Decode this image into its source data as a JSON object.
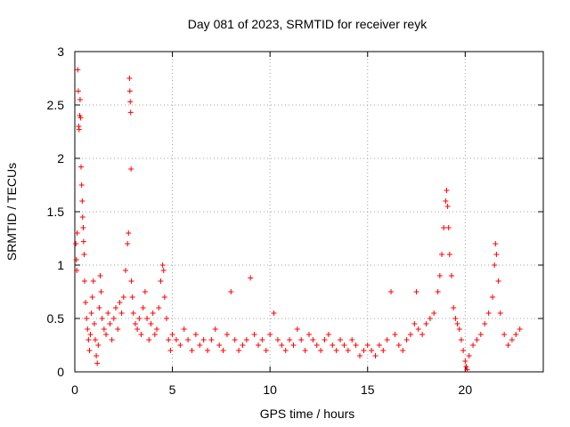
{
  "chart_data": {
    "type": "scatter",
    "title": "Day 081 of 2023, SRMTID for receiver reyk",
    "xlabel": "GPS time / hours",
    "ylabel": "SRMTID / TECUs",
    "xlim": [
      0,
      24
    ],
    "ylim": [
      0,
      3
    ],
    "grid": true,
    "marker": "+",
    "color": "#ff0000",
    "xticks": [
      0,
      5,
      10,
      15,
      20
    ],
    "yticks": [
      0,
      0.5,
      1,
      1.5,
      2,
      2.5,
      3
    ],
    "xtick_labels": [
      "0",
      "5",
      "10",
      "15",
      "20"
    ],
    "ytick_labels": [
      "0",
      "0.5",
      "1",
      "1.5",
      "2",
      "2.5",
      "3"
    ],
    "series": [
      {
        "name": "SRMTID",
        "points": [
          [
            0.05,
            1.2
          ],
          [
            0.08,
            1.05
          ],
          [
            0.1,
            0.95
          ],
          [
            0.12,
            1.3
          ],
          [
            0.15,
            2.83
          ],
          [
            0.18,
            2.63
          ],
          [
            0.2,
            2.3
          ],
          [
            0.22,
            2.27
          ],
          [
            0.25,
            2.4
          ],
          [
            0.27,
            2.55
          ],
          [
            0.3,
            2.38
          ],
          [
            0.32,
            1.92
          ],
          [
            0.35,
            1.75
          ],
          [
            0.38,
            1.6
          ],
          [
            0.4,
            1.45
          ],
          [
            0.43,
            1.35
          ],
          [
            0.45,
            1.22
          ],
          [
            0.48,
            1.1
          ],
          [
            0.5,
            0.85
          ],
          [
            0.55,
            0.65
          ],
          [
            0.6,
            0.5
          ],
          [
            0.65,
            0.4
          ],
          [
            0.7,
            0.3
          ],
          [
            0.75,
            0.2
          ],
          [
            0.8,
            0.35
          ],
          [
            0.85,
            0.55
          ],
          [
            0.9,
            0.7
          ],
          [
            0.95,
            0.85
          ],
          [
            1.0,
            0.45
          ],
          [
            1.05,
            0.3
          ],
          [
            1.1,
            0.15
          ],
          [
            1.15,
            0.08
          ],
          [
            1.2,
            0.25
          ],
          [
            1.25,
            0.6
          ],
          [
            1.3,
            0.9
          ],
          [
            1.35,
            0.75
          ],
          [
            1.4,
            0.5
          ],
          [
            1.5,
            0.4
          ],
          [
            1.6,
            0.35
          ],
          [
            1.7,
            0.55
          ],
          [
            1.8,
            0.45
          ],
          [
            1.9,
            0.3
          ],
          [
            2.0,
            0.5
          ],
          [
            2.1,
            0.6
          ],
          [
            2.2,
            0.4
          ],
          [
            2.3,
            0.65
          ],
          [
            2.4,
            0.55
          ],
          [
            2.5,
            0.7
          ],
          [
            2.6,
            0.95
          ],
          [
            2.7,
            1.2
          ],
          [
            2.75,
            1.3
          ],
          [
            2.8,
            2.75
          ],
          [
            2.82,
            2.63
          ],
          [
            2.84,
            2.53
          ],
          [
            2.86,
            2.43
          ],
          [
            2.88,
            1.9
          ],
          [
            2.9,
            0.85
          ],
          [
            2.95,
            0.7
          ],
          [
            3.0,
            0.55
          ],
          [
            3.1,
            0.45
          ],
          [
            3.2,
            0.4
          ],
          [
            3.3,
            0.5
          ],
          [
            3.4,
            0.35
          ],
          [
            3.5,
            0.6
          ],
          [
            3.6,
            0.75
          ],
          [
            3.7,
            0.5
          ],
          [
            3.8,
            0.3
          ],
          [
            3.9,
            0.45
          ],
          [
            4.0,
            0.55
          ],
          [
            4.1,
            0.35
          ],
          [
            4.2,
            0.4
          ],
          [
            4.3,
            0.6
          ],
          [
            4.4,
            0.85
          ],
          [
            4.5,
            1.0
          ],
          [
            4.55,
            0.95
          ],
          [
            4.6,
            0.7
          ],
          [
            4.7,
            0.5
          ],
          [
            4.8,
            0.3
          ],
          [
            4.9,
            0.2
          ],
          [
            5.0,
            0.35
          ],
          [
            5.2,
            0.3
          ],
          [
            5.4,
            0.25
          ],
          [
            5.6,
            0.4
          ],
          [
            5.8,
            0.3
          ],
          [
            6.0,
            0.2
          ],
          [
            6.2,
            0.35
          ],
          [
            6.4,
            0.25
          ],
          [
            6.6,
            0.3
          ],
          [
            6.8,
            0.2
          ],
          [
            7.0,
            0.3
          ],
          [
            7.2,
            0.4
          ],
          [
            7.4,
            0.25
          ],
          [
            7.6,
            0.2
          ],
          [
            7.8,
            0.35
          ],
          [
            8.0,
            0.75
          ],
          [
            8.2,
            0.3
          ],
          [
            8.4,
            0.2
          ],
          [
            8.6,
            0.25
          ],
          [
            8.8,
            0.3
          ],
          [
            9.0,
            0.88
          ],
          [
            9.2,
            0.35
          ],
          [
            9.4,
            0.25
          ],
          [
            9.6,
            0.3
          ],
          [
            9.8,
            0.2
          ],
          [
            10.0,
            0.35
          ],
          [
            10.2,
            0.55
          ],
          [
            10.4,
            0.3
          ],
          [
            10.6,
            0.25
          ],
          [
            10.8,
            0.2
          ],
          [
            11.0,
            0.3
          ],
          [
            11.2,
            0.25
          ],
          [
            11.4,
            0.4
          ],
          [
            11.6,
            0.3
          ],
          [
            11.8,
            0.2
          ],
          [
            12.0,
            0.35
          ],
          [
            12.2,
            0.3
          ],
          [
            12.4,
            0.25
          ],
          [
            12.6,
            0.2
          ],
          [
            12.8,
            0.3
          ],
          [
            13.0,
            0.35
          ],
          [
            13.2,
            0.25
          ],
          [
            13.4,
            0.2
          ],
          [
            13.6,
            0.3
          ],
          [
            13.8,
            0.25
          ],
          [
            14.0,
            0.2
          ],
          [
            14.2,
            0.3
          ],
          [
            14.4,
            0.25
          ],
          [
            14.6,
            0.15
          ],
          [
            14.8,
            0.2
          ],
          [
            15.0,
            0.25
          ],
          [
            15.2,
            0.2
          ],
          [
            15.4,
            0.15
          ],
          [
            15.6,
            0.25
          ],
          [
            15.8,
            0.2
          ],
          [
            16.0,
            0.3
          ],
          [
            16.2,
            0.75
          ],
          [
            16.4,
            0.35
          ],
          [
            16.6,
            0.25
          ],
          [
            16.8,
            0.2
          ],
          [
            17.0,
            0.3
          ],
          [
            17.2,
            0.35
          ],
          [
            17.4,
            0.45
          ],
          [
            17.5,
            0.75
          ],
          [
            17.6,
            0.4
          ],
          [
            17.8,
            0.35
          ],
          [
            18.0,
            0.45
          ],
          [
            18.2,
            0.5
          ],
          [
            18.4,
            0.55
          ],
          [
            18.6,
            0.75
          ],
          [
            18.7,
            0.9
          ],
          [
            18.8,
            1.1
          ],
          [
            18.9,
            1.35
          ],
          [
            19.0,
            1.6
          ],
          [
            19.05,
            1.7
          ],
          [
            19.1,
            1.55
          ],
          [
            19.15,
            1.35
          ],
          [
            19.2,
            1.1
          ],
          [
            19.3,
            0.9
          ],
          [
            19.4,
            0.6
          ],
          [
            19.5,
            0.5
          ],
          [
            19.6,
            0.45
          ],
          [
            19.7,
            0.4
          ],
          [
            19.8,
            0.3
          ],
          [
            19.9,
            0.2
          ],
          [
            20.0,
            0.1
          ],
          [
            20.05,
            0.05
          ],
          [
            20.1,
            0.02
          ],
          [
            20.2,
            0.15
          ],
          [
            20.4,
            0.25
          ],
          [
            20.6,
            0.3
          ],
          [
            20.8,
            0.35
          ],
          [
            21.0,
            0.45
          ],
          [
            21.2,
            0.55
          ],
          [
            21.4,
            0.7
          ],
          [
            21.5,
            1.0
          ],
          [
            21.55,
            1.2
          ],
          [
            21.6,
            1.1
          ],
          [
            21.7,
            0.85
          ],
          [
            21.8,
            0.55
          ],
          [
            22.0,
            0.35
          ],
          [
            22.2,
            0.25
          ],
          [
            22.4,
            0.3
          ],
          [
            22.6,
            0.35
          ],
          [
            22.8,
            0.4
          ]
        ]
      }
    ]
  }
}
